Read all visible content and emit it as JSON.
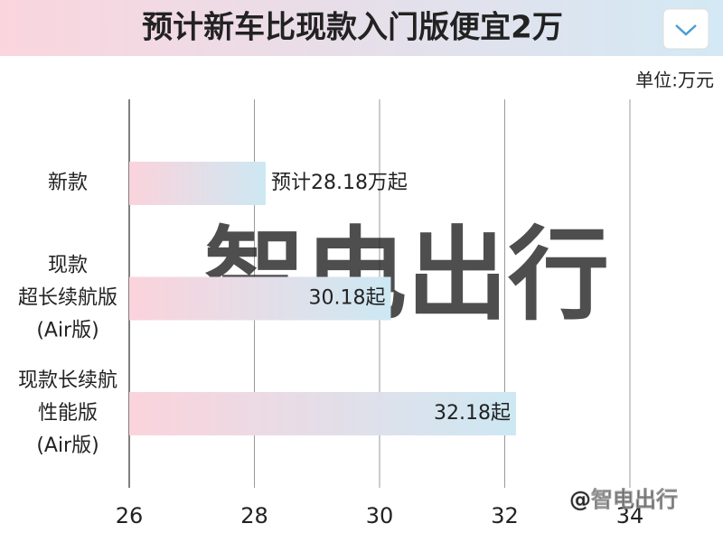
{
  "chart_data": {
    "type": "hbar",
    "title": "预计新车比现款入门版便宜2万",
    "unit_label": "单位:万元",
    "categories": [
      [
        "新款"
      ],
      [
        "现款",
        "超长续航版",
        "(Air版)"
      ],
      [
        "现款长续航",
        "性能版",
        "(Air版)"
      ]
    ],
    "values": [
      28.18,
      30.18,
      32.18
    ],
    "value_labels": [
      "预计28.18万起",
      "30.18起",
      "32.18起"
    ],
    "color": [
      "#fbd3dc",
      "#cde8f3"
    ],
    "xlim": [
      26,
      34
    ],
    "xticks": [
      26,
      28,
      30,
      32,
      34
    ],
    "grid": true,
    "watermark": "智电出行",
    "watermark_credit": "@智电出行"
  }
}
